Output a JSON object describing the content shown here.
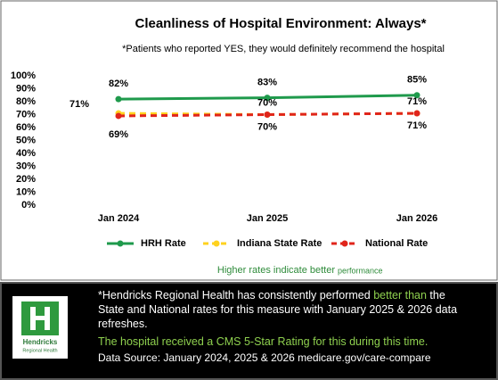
{
  "chart_data": {
    "type": "line",
    "title": "Cleanliness of Hospital Environment: Always*",
    "subtitle": "*Patients who reported YES, they would definitely recommend the hospital",
    "categories": [
      "Jan 2024",
      "Jan 2025",
      "Jan 2026"
    ],
    "series": [
      {
        "name": "HRH Rate",
        "color": "#1f9a4c",
        "dashed": false,
        "values": [
          82,
          83,
          85
        ],
        "value_labels": [
          "82%",
          "83%",
          "85%"
        ]
      },
      {
        "name": "Indiana State Rate",
        "color": "#ffd21f",
        "dashed": true,
        "values": [
          71,
          70,
          71
        ],
        "value_labels": [
          "71%",
          "70%",
          "71%"
        ]
      },
      {
        "name": "National Rate",
        "color": "#e0251b",
        "dashed": true,
        "values": [
          69,
          70,
          71
        ],
        "value_labels": [
          "69%",
          "70%",
          "71%"
        ]
      }
    ],
    "ylim": [
      0,
      100
    ],
    "yticks": [
      {
        "value": 0,
        "label": "0%"
      },
      {
        "value": 10,
        "label": "10%"
      },
      {
        "value": 20,
        "label": "20%"
      },
      {
        "value": 30,
        "label": "30%"
      },
      {
        "value": 40,
        "label": "40%"
      },
      {
        "value": 50,
        "label": "50%"
      },
      {
        "value": 60,
        "label": "60%"
      },
      {
        "value": 70,
        "label": "70%"
      },
      {
        "value": 80,
        "label": "80%"
      },
      {
        "value": 90,
        "label": "90%"
      },
      {
        "value": 100,
        "label": "100%"
      }
    ],
    "grid": false,
    "legend": "bottom",
    "annotation": {
      "main": "Higher rates indicate better",
      "small": "performance"
    }
  },
  "footer": {
    "logo": {
      "name": "Hendricks",
      "subname": "Regional Health"
    },
    "paragraph1": [
      "*Hendricks Regional Health  has consistently performed ",
      "better than",
      " the State and National rates for this measure with January 2025 & 2026 data refreshes."
    ],
    "paragraph2": "The hospital received a CMS 5-Star  Rating for this  during this time.",
    "source": "Data Source: January 2024, 2025 & 2026 medicare.gov/care-compare"
  }
}
